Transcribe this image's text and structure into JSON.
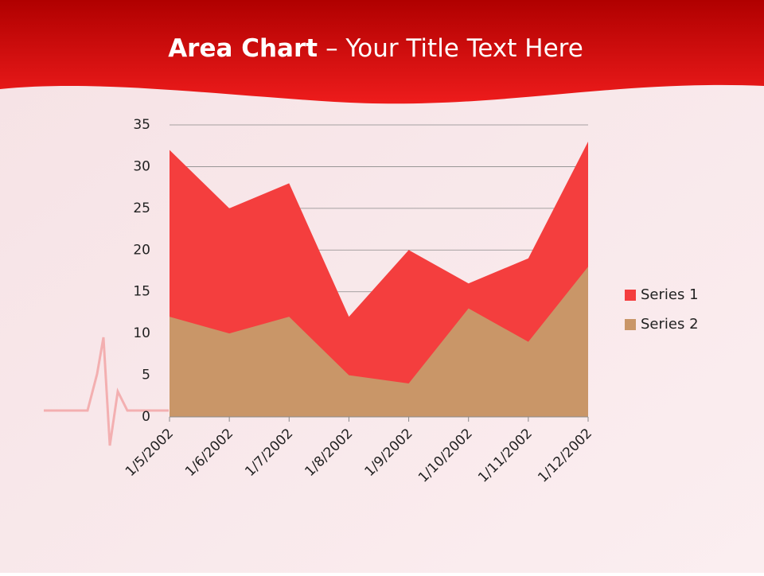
{
  "chart_data": {
    "type": "area",
    "title_emphasis": "Area Chart",
    "title": "– Your Title Text Here",
    "categories": [
      "1/5/2002",
      "1/6/2002",
      "1/7/2002",
      "1/8/2002",
      "1/9/2002",
      "1/10/2002",
      "1/11/2002",
      "1/12/2002"
    ],
    "series": [
      {
        "name": "Series 1",
        "color": "#f43e3e",
        "values": [
          32,
          25,
          28,
          12,
          20,
          16,
          19,
          33
        ]
      },
      {
        "name": "Series 2",
        "color": "#c99668",
        "values": [
          12,
          10,
          12,
          5,
          4,
          13,
          9,
          18
        ]
      }
    ],
    "ylim": [
      0,
      35
    ],
    "yticks": [
      0,
      5,
      10,
      15,
      20,
      25,
      30,
      35
    ],
    "grid": true,
    "legend": "right"
  }
}
